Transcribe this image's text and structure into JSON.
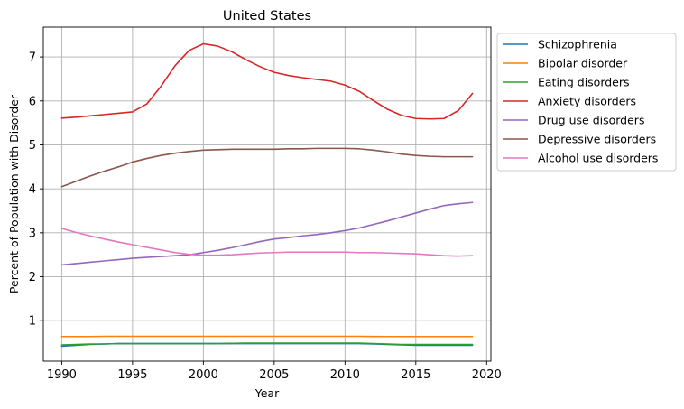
{
  "chart_data": {
    "type": "line",
    "title": "United States",
    "xlabel": "Year",
    "ylabel": "Percent of Population with Disorder",
    "xlim": [
      1988.7,
      2020.3
    ],
    "ylim": [
      0.08,
      7.68
    ],
    "xticks": [
      1990,
      1995,
      2000,
      2005,
      2010,
      2015,
      2020
    ],
    "yticks": [
      1,
      2,
      3,
      4,
      5,
      6,
      7
    ],
    "grid": true,
    "legend_position": "outside-right",
    "x": [
      1990,
      1991,
      1992,
      1993,
      1994,
      1995,
      1996,
      1997,
      1998,
      1999,
      2000,
      2001,
      2002,
      2003,
      2004,
      2005,
      2006,
      2007,
      2008,
      2009,
      2010,
      2011,
      2012,
      2013,
      2014,
      2015,
      2016,
      2017,
      2018,
      2019
    ],
    "series": [
      {
        "name": "Schizophrenia",
        "color": "#1f77b4",
        "values": [
          0.42,
          0.44,
          0.46,
          0.47,
          0.48,
          0.48,
          0.48,
          0.48,
          0.48,
          0.48,
          0.48,
          0.48,
          0.48,
          0.48,
          0.48,
          0.48,
          0.48,
          0.48,
          0.48,
          0.48,
          0.48,
          0.48,
          0.47,
          0.46,
          0.45,
          0.44,
          0.44,
          0.44,
          0.44,
          0.44
        ]
      },
      {
        "name": "Bipolar disorder",
        "color": "#ff7f0e",
        "values": [
          0.64,
          0.64,
          0.64,
          0.645,
          0.645,
          0.645,
          0.645,
          0.645,
          0.645,
          0.645,
          0.645,
          0.645,
          0.645,
          0.645,
          0.645,
          0.645,
          0.645,
          0.645,
          0.645,
          0.645,
          0.645,
          0.645,
          0.642,
          0.64,
          0.64,
          0.64,
          0.64,
          0.64,
          0.64,
          0.64
        ]
      },
      {
        "name": "Eating disorders",
        "color": "#2ca02c",
        "values": [
          0.45,
          0.46,
          0.47,
          0.47,
          0.48,
          0.48,
          0.48,
          0.48,
          0.48,
          0.48,
          0.48,
          0.48,
          0.485,
          0.49,
          0.49,
          0.49,
          0.49,
          0.49,
          0.49,
          0.49,
          0.49,
          0.49,
          0.48,
          0.47,
          0.46,
          0.46,
          0.46,
          0.46,
          0.46,
          0.46
        ]
      },
      {
        "name": "Anxiety disorders",
        "color": "#d62728",
        "values": [
          5.61,
          5.63,
          5.66,
          5.69,
          5.72,
          5.75,
          5.93,
          6.33,
          6.8,
          7.15,
          7.3,
          7.25,
          7.12,
          6.94,
          6.78,
          6.65,
          6.58,
          6.53,
          6.49,
          6.45,
          6.36,
          6.22,
          6.01,
          5.81,
          5.67,
          5.6,
          5.59,
          5.6,
          5.78,
          6.17
        ]
      },
      {
        "name": "Drug use disorders",
        "color": "#9467bd",
        "values": [
          2.27,
          2.3,
          2.33,
          2.36,
          2.39,
          2.42,
          2.44,
          2.46,
          2.48,
          2.5,
          2.55,
          2.6,
          2.66,
          2.73,
          2.8,
          2.86,
          2.89,
          2.93,
          2.96,
          3.0,
          3.05,
          3.11,
          3.19,
          3.27,
          3.36,
          3.45,
          3.54,
          3.62,
          3.66,
          3.69
        ]
      },
      {
        "name": "Depressive disorders",
        "color": "#8c564b",
        "values": [
          4.05,
          4.17,
          4.29,
          4.4,
          4.5,
          4.61,
          4.69,
          4.76,
          4.81,
          4.85,
          4.88,
          4.89,
          4.9,
          4.9,
          4.9,
          4.9,
          4.91,
          4.91,
          4.92,
          4.92,
          4.92,
          4.91,
          4.88,
          4.84,
          4.79,
          4.76,
          4.74,
          4.73,
          4.73,
          4.73
        ]
      },
      {
        "name": "Alcohol use disorders",
        "color": "#e377c2",
        "values": [
          3.1,
          3.01,
          2.93,
          2.86,
          2.79,
          2.73,
          2.67,
          2.61,
          2.55,
          2.51,
          2.49,
          2.49,
          2.5,
          2.52,
          2.54,
          2.55,
          2.56,
          2.56,
          2.56,
          2.56,
          2.56,
          2.55,
          2.55,
          2.54,
          2.53,
          2.52,
          2.5,
          2.48,
          2.47,
          2.48
        ]
      }
    ]
  }
}
